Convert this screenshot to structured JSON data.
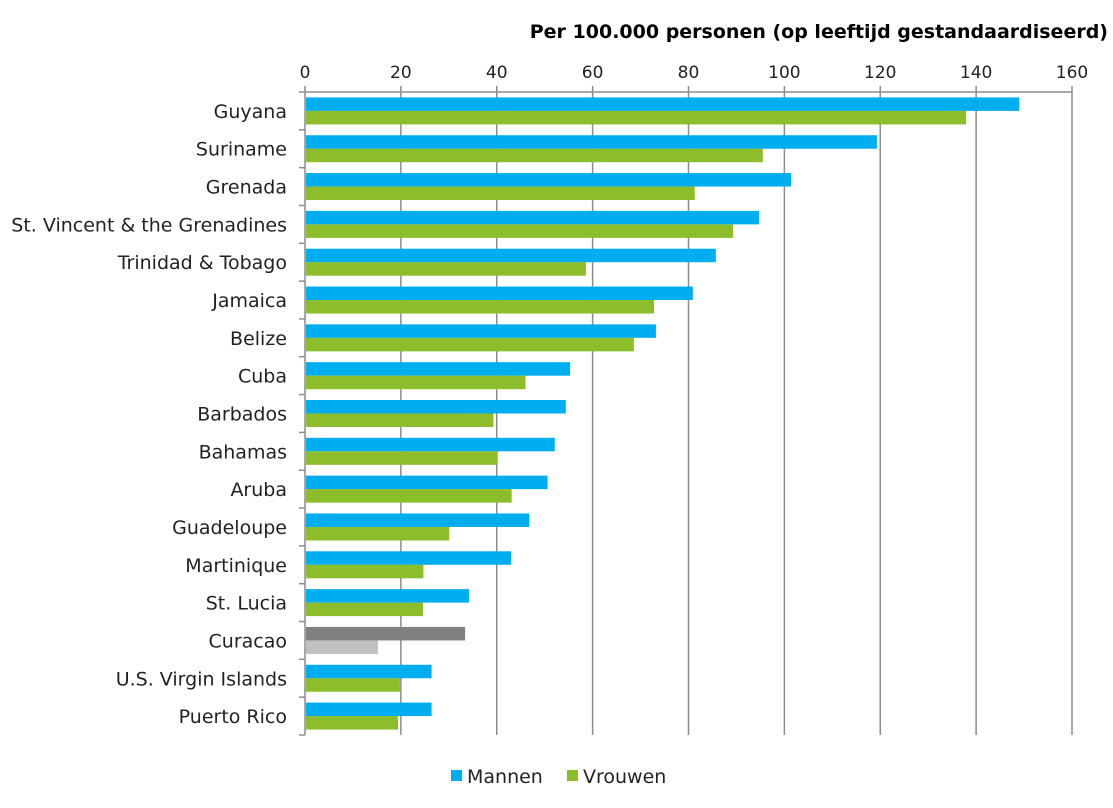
{
  "chart_data": {
    "type": "bar",
    "orientation": "horizontal",
    "title": "",
    "xlabel": "Per 100.000 personen (op leeftijd gestandaardiseerd)",
    "ylabel": "",
    "xlim": [
      0,
      160
    ],
    "x_ticks": [
      "0",
      "20",
      "40",
      "60",
      "80",
      "100",
      "120",
      "140",
      "160"
    ],
    "grid": true,
    "legend_position": "bottom",
    "categories": [
      "Guyana",
      "Suriname",
      "Grenada",
      "St. Vincent & the Grenadines",
      "Trinidad & Tobago",
      "Jamaica",
      "Belize",
      "Cuba",
      "Barbados",
      "Bahamas",
      "Aruba",
      "Guadeloupe",
      "Martinique",
      "St. Lucia",
      "Curacao",
      "U.S. Virgin Islands",
      "Puerto Rico"
    ],
    "series": [
      {
        "name": "Mannen",
        "color": "#00AEEF",
        "values": [
          149,
          119.3,
          101.4,
          94.7,
          85.7,
          80.9,
          73.2,
          55.3,
          54.4,
          52.1,
          50.6,
          46.8,
          43.0,
          34.2,
          33.4,
          26.4,
          26.4
        ]
      },
      {
        "name": "Vrouwen",
        "color": "#8CBD2B",
        "values": [
          137.9,
          95.5,
          81.3,
          89.3,
          58.6,
          72.8,
          68.6,
          46.0,
          39.3,
          40.2,
          43.1,
          30.1,
          24.7,
          24.6,
          15.2,
          19.8,
          19.4
        ]
      }
    ],
    "highlight": {
      "category": "Curacao",
      "colors": [
        "#808080",
        "#C0C0C0"
      ]
    }
  }
}
